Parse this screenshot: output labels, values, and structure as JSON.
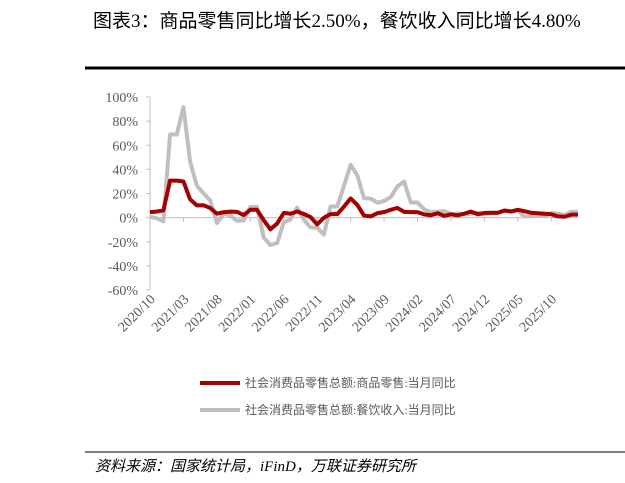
{
  "chart_data": {
    "type": "line",
    "title": "图表3：商品零售同比增长2.50%，餐饮收入同比增长4.80%",
    "source": "资料来源：国家统计局，iFinD，万联证券研究所",
    "categories": [
      "2020/10",
      null,
      null,
      null,
      null,
      "2021/03",
      null,
      null,
      null,
      null,
      "2021/08",
      null,
      null,
      null,
      null,
      "2022/01",
      null,
      null,
      null,
      null,
      "2022/06",
      null,
      null,
      null,
      null,
      "2022/11",
      null,
      null,
      null,
      null,
      "2023/04",
      null,
      null,
      null,
      null,
      "2023/09",
      null,
      null,
      null,
      null,
      "2024/02",
      null,
      null,
      null,
      null,
      "2024/07",
      null,
      null,
      null,
      null,
      "2024/12",
      null,
      null,
      null,
      null,
      "2025/05",
      null,
      null,
      null,
      null,
      "2025/10",
      null,
      null,
      null,
      null
    ],
    "series": [
      {
        "name": "社会消费品零售总额:商品零售:当月同比",
        "color": "#a50000",
        "values": [
          4.6,
          5.0,
          6.0,
          30.7,
          30.7,
          30.0,
          15.1,
          10.2,
          10.3,
          7.9,
          3.3,
          4.5,
          5.0,
          4.8,
          2.1,
          6.5,
          6.5,
          -2.1,
          -9.7,
          -5.0,
          3.9,
          3.2,
          5.1,
          3.0,
          0.5,
          -5.6,
          -0.1,
          2.9,
          2.9,
          9.1,
          15.9,
          10.5,
          1.7,
          1.0,
          3.7,
          4.6,
          6.5,
          8.0,
          4.8,
          4.6,
          4.6,
          2.7,
          2.0,
          3.6,
          1.5,
          2.7,
          1.9,
          3.3,
          5.0,
          2.8,
          3.9,
          3.9,
          3.9,
          5.9,
          5.1,
          6.5,
          5.3,
          4.0,
          3.6,
          3.2,
          2.8,
          1.0,
          0.7,
          2.5,
          2.5
        ]
      },
      {
        "name": "社会消费品零售总额:餐饮收入:当月同比",
        "color": "#bfbfbf",
        "values": [
          0.8,
          -0.6,
          -3.1,
          68.9,
          68.9,
          91.6,
          46.4,
          26.6,
          20.2,
          14.3,
          -4.5,
          3.1,
          2.0,
          -2.7,
          -2.3,
          8.9,
          8.9,
          -16.4,
          -22.7,
          -21.1,
          -4.0,
          -1.5,
          8.4,
          -1.7,
          -8.1,
          -8.4,
          -14.1,
          9.2,
          9.2,
          26.3,
          43.8,
          35.1,
          16.1,
          15.8,
          12.4,
          13.8,
          17.1,
          25.8,
          30.0,
          12.5,
          12.5,
          6.9,
          4.4,
          5.0,
          5.4,
          3.0,
          3.3,
          3.1,
          3.2,
          4.0,
          2.7,
          4.3,
          4.3,
          5.6,
          5.2,
          5.9,
          0.9,
          1.1,
          2.1,
          0.9,
          3.8,
          3.2,
          2.2,
          4.8,
          4.8
        ]
      }
    ],
    "ylim": [
      -60,
      100
    ],
    "yticks": [
      {
        "value": -60,
        "label": "-60%"
      },
      {
        "value": -40,
        "label": "-40%"
      },
      {
        "value": -20,
        "label": "-20%"
      },
      {
        "value": 0,
        "label": "0%"
      },
      {
        "value": 20,
        "label": "20%"
      },
      {
        "value": 40,
        "label": "40%"
      },
      {
        "value": 60,
        "label": "60%"
      },
      {
        "value": 80,
        "label": "80%"
      },
      {
        "value": 100,
        "label": "100%"
      }
    ],
    "grid": false,
    "legend": "bottom"
  }
}
